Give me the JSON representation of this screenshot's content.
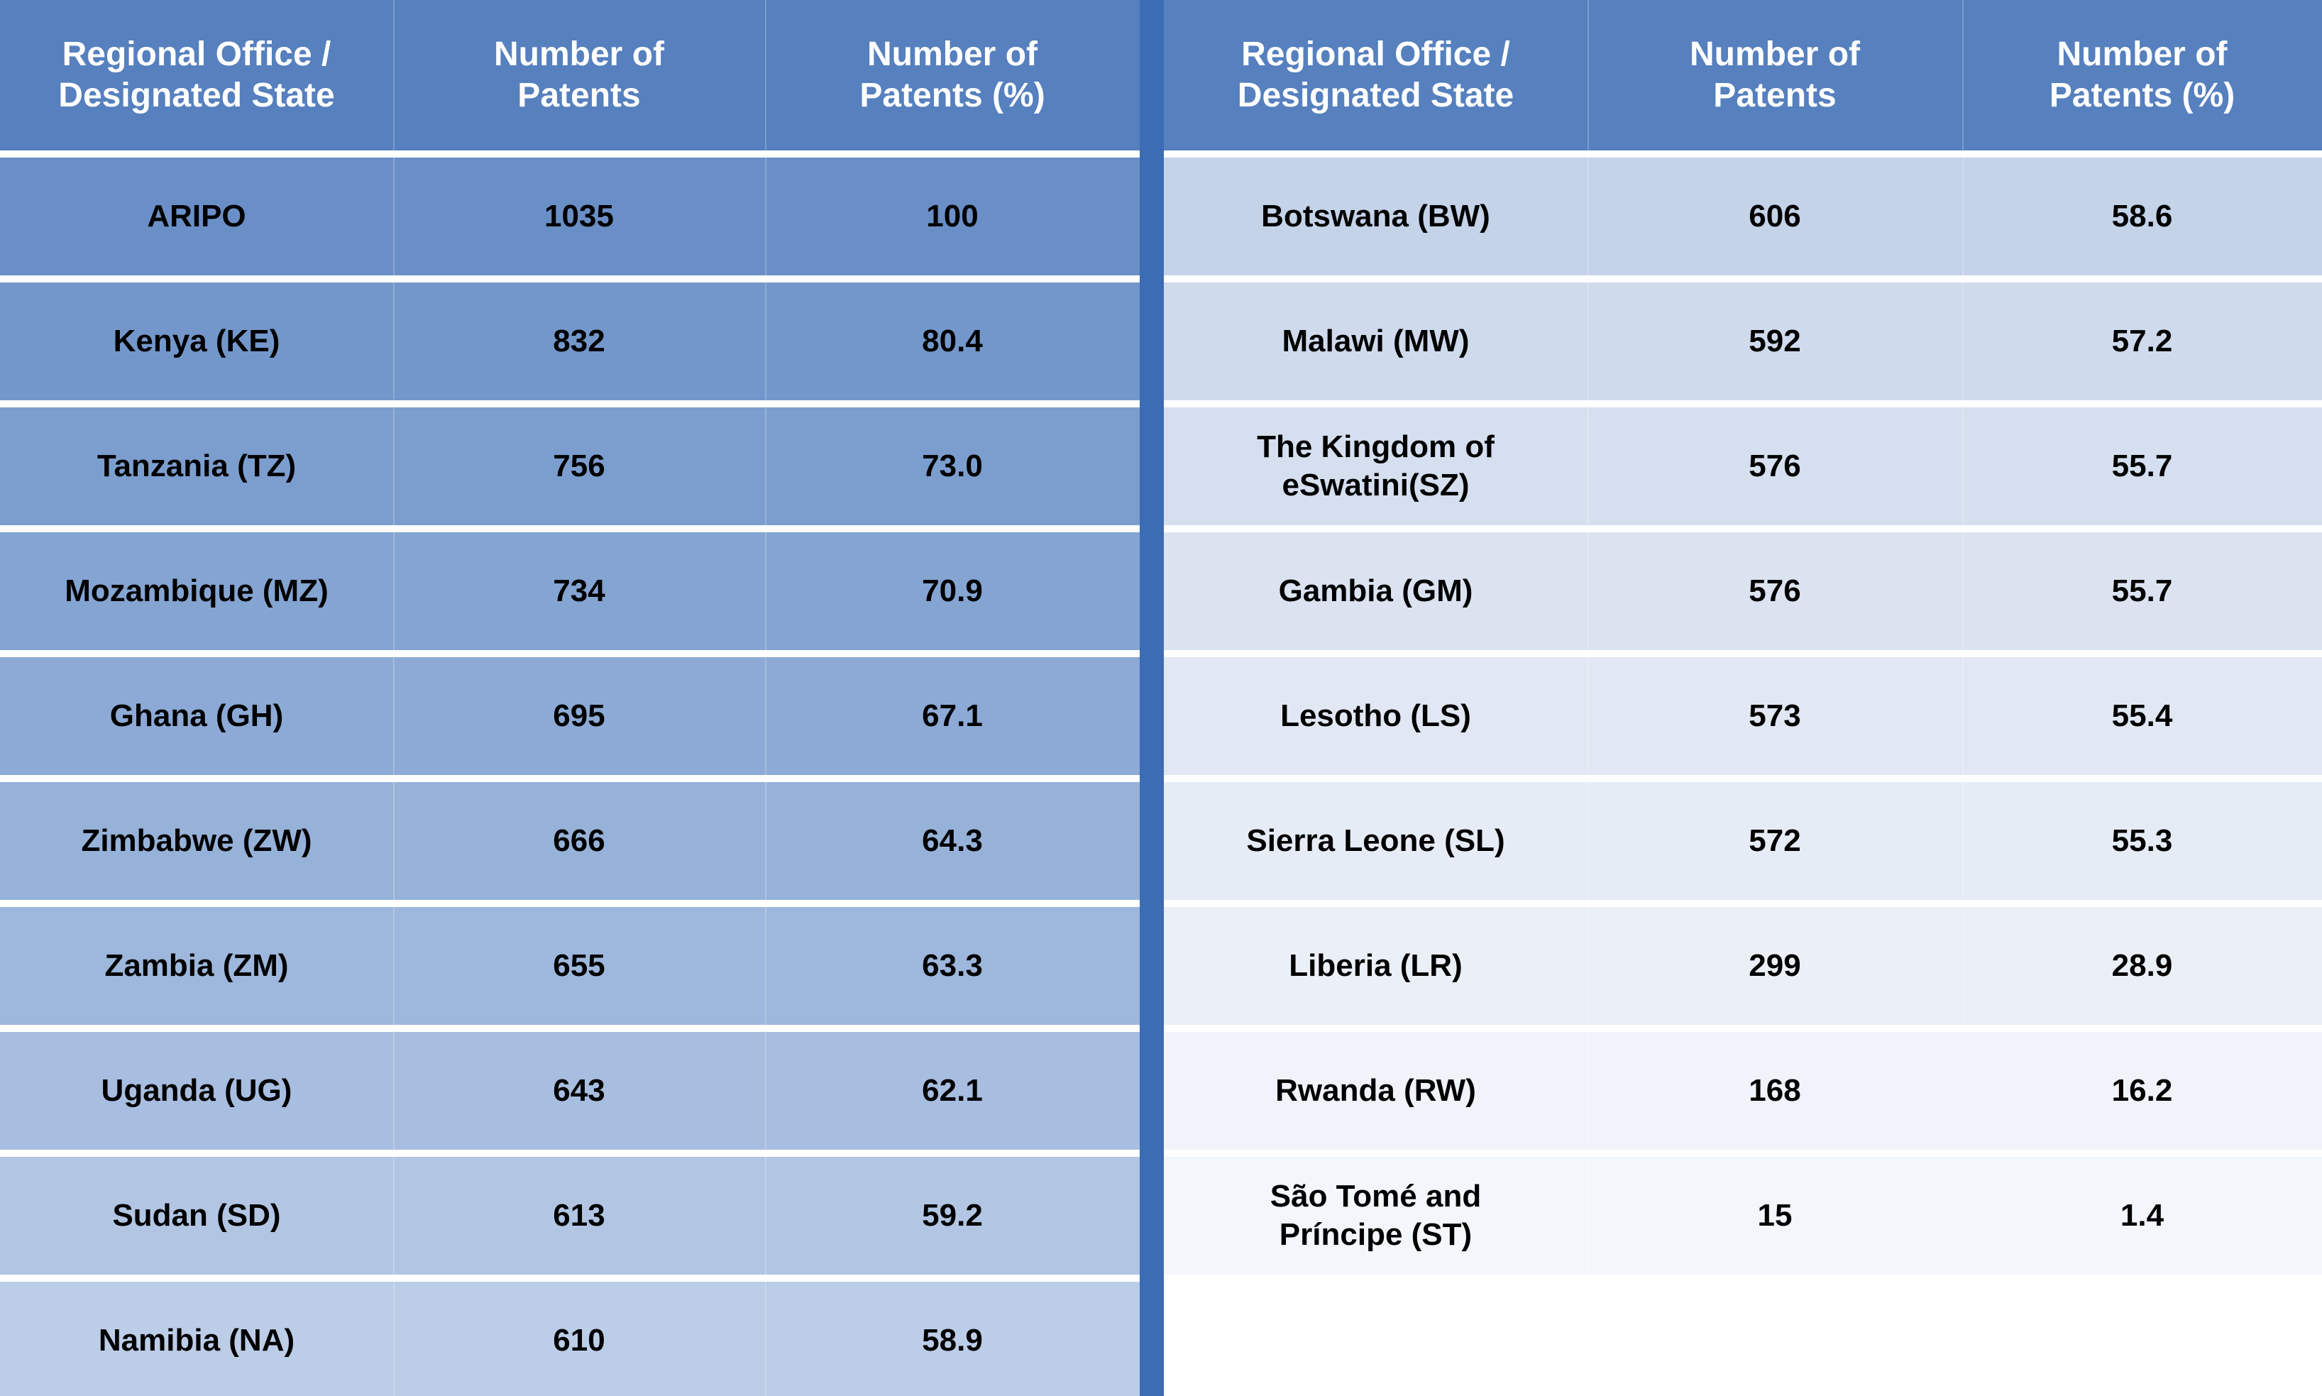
{
  "chart_data": {
    "type": "table",
    "columns": [
      "Regional Office /\nDesignated State",
      "Number of\nPatents",
      "Number of\nPatents (%)"
    ],
    "left_table": {
      "rows": [
        [
          "ARIPO",
          "1035",
          "100"
        ],
        [
          "Kenya (KE)",
          "832",
          "80.4"
        ],
        [
          "Tanzania (TZ)",
          "756",
          "73.0"
        ],
        [
          "Mozambique (MZ)",
          "734",
          "70.9"
        ],
        [
          "Ghana (GH)",
          "695",
          "67.1"
        ],
        [
          "Zimbabwe (ZW)",
          "666",
          "64.3"
        ],
        [
          "Zambia (ZM)",
          "655",
          "63.3"
        ],
        [
          "Uganda (UG)",
          "643",
          "62.1"
        ],
        [
          "Sudan (SD)",
          "613",
          "59.2"
        ],
        [
          "Namibia (NA)",
          "610",
          "58.9"
        ]
      ],
      "row_colors": [
        "#6a8fc7",
        "#7397cb",
        "#7c9ecf",
        "#84a4d2",
        "#8caad5",
        "#97b2d9",
        "#9eb7dc",
        "#a8bee0",
        "#b2c6e3",
        "#bccde7"
      ]
    },
    "right_table": {
      "rows": [
        [
          "Botswana (BW)",
          "606",
          "58.6"
        ],
        [
          "Malawi (MW)",
          "592",
          "57.2"
        ],
        [
          "The Kingdom of\neSwatini(SZ)",
          "576",
          "55.7"
        ],
        [
          "Gambia (GM)",
          "576",
          "55.7"
        ],
        [
          "Lesotho (LS)",
          "573",
          "55.4"
        ],
        [
          "Sierra Leone (SL)",
          "572",
          "55.3"
        ],
        [
          "Liberia (LR)",
          "299",
          "28.9"
        ],
        [
          "Rwanda (RW)",
          "168",
          "16.2"
        ],
        [
          "São Tomé and\nPríncipe (ST)",
          "15",
          "1.4"
        ]
      ],
      "row_colors": [
        "#c5d3e9",
        "#cfdaed",
        "#d5dfef",
        "#dbe3f1",
        "#e1e8f3",
        "#e6ecf5",
        "#ebf0f7",
        "#f0f3f9",
        "#f3f6fb"
      ]
    },
    "header_color": "#5680be",
    "divider_color": "#3c6cb4"
  }
}
